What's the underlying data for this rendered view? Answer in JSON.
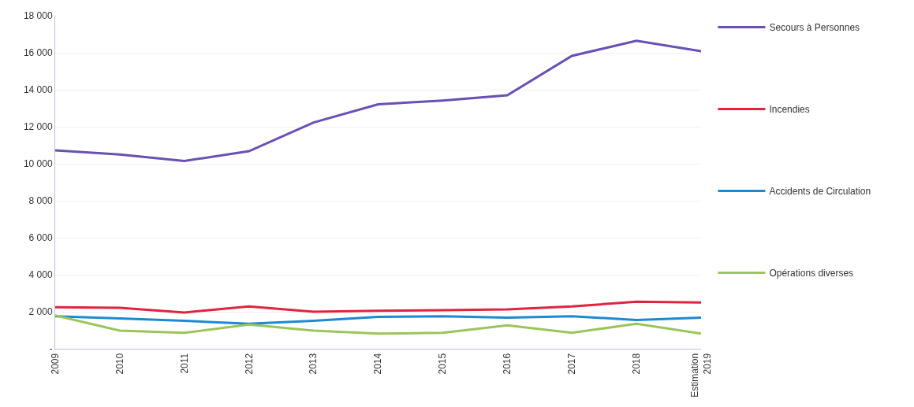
{
  "chart_data": {
    "type": "line",
    "categories": [
      "2009",
      "2010",
      "2011",
      "2012",
      "2013",
      "2014",
      "2015",
      "2016",
      "2017",
      "2018",
      "Estimation 2019"
    ],
    "series": [
      {
        "name": "Secours à Personnes",
        "color": "#6a4fb5",
        "values": [
          10720,
          10500,
          10150,
          10680,
          12230,
          13210,
          13420,
          13700,
          15830,
          16650,
          16080
        ]
      },
      {
        "name": "Incendies",
        "color": "#e0243f",
        "values": [
          2250,
          2210,
          1960,
          2290,
          2000,
          2050,
          2090,
          2130,
          2290,
          2540,
          2500
        ]
      },
      {
        "name": "Accidents de Circulation",
        "color": "#1c8ad0",
        "values": [
          1760,
          1640,
          1510,
          1350,
          1510,
          1720,
          1760,
          1680,
          1760,
          1550,
          1680
        ]
      },
      {
        "name": "Opérations diverses",
        "color": "#9bc55a",
        "values": [
          1800,
          980,
          860,
          1310,
          980,
          820,
          860,
          1270,
          860,
          1350,
          820
        ]
      }
    ],
    "ylim": [
      0,
      18000
    ],
    "yticks": [
      {
        "value": 0,
        "label": "-"
      },
      {
        "value": 2000,
        "label": "2 000"
      },
      {
        "value": 4000,
        "label": "4 000"
      },
      {
        "value": 6000,
        "label": "6 000"
      },
      {
        "value": 8000,
        "label": "8 000"
      },
      {
        "value": 10000,
        "label": "10 000"
      },
      {
        "value": 12000,
        "label": "12 000"
      },
      {
        "value": 14000,
        "label": "14 000"
      },
      {
        "value": 16000,
        "label": "16 000"
      },
      {
        "value": 18000,
        "label": "18 000"
      }
    ],
    "grid": "y",
    "legend": "right",
    "marker": "none",
    "line_style": "solid"
  }
}
